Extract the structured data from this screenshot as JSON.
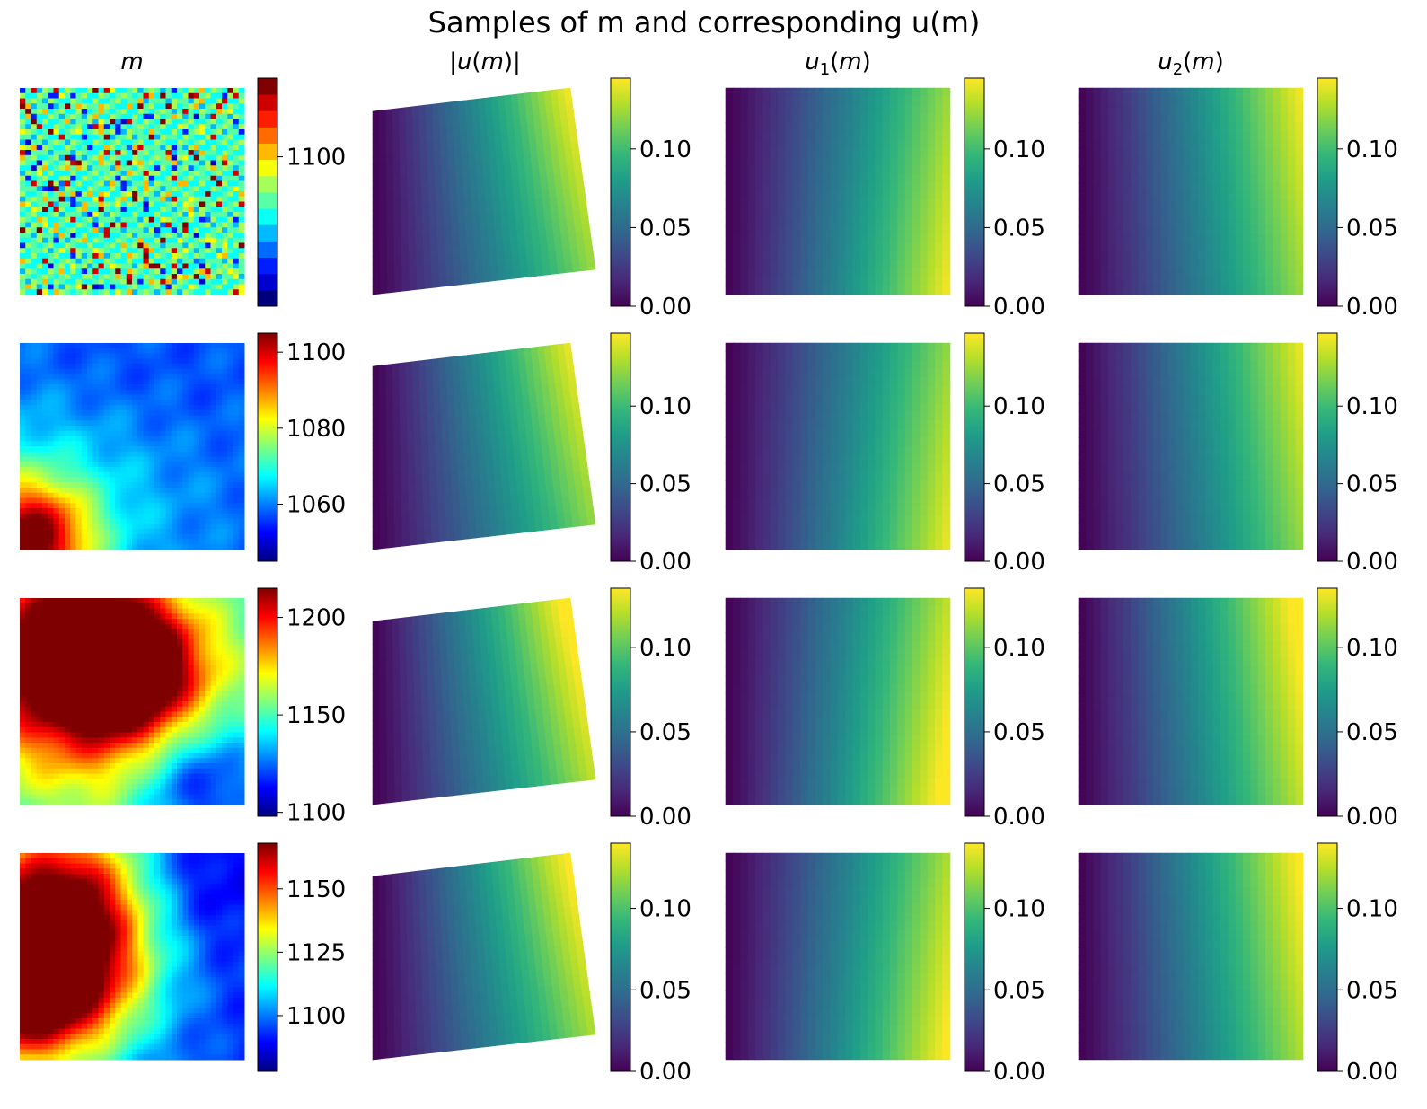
{
  "chart_data": {
    "type": "heatmap",
    "title": "Samples of m and corresponding u(m)",
    "columns": [
      {
        "key": "m",
        "title": "m",
        "colormap": "jet"
      },
      {
        "key": "abs_u",
        "title": "|u(m)|",
        "colormap": "viridis"
      },
      {
        "key": "u1",
        "title": "u1(m)",
        "title_main": "u",
        "title_sub": "1",
        "title_tail": "(m)",
        "colormap": "viridis"
      },
      {
        "key": "u2",
        "title": "u2(m)",
        "title_main": "u",
        "title_sub": "2",
        "title_tail": "(m)",
        "colormap": "viridis"
      }
    ],
    "rows": [
      {
        "m": {
          "field": "noise",
          "vmin": 1043,
          "vmax": 1130,
          "ticks": [
            1100
          ],
          "levels": 14
        },
        "u_colorbar": {
          "vmin": 0.0,
          "vmax": 0.145,
          "ticks": [
            "0.00",
            "0.05",
            "0.10"
          ]
        }
      },
      {
        "m": {
          "field": "smooth",
          "vmin": 1045,
          "vmax": 1105,
          "ticks": [
            1060,
            1080,
            1100
          ],
          "blobs": [
            [
              0.05,
              0.95,
              0.85,
              0.18
            ],
            [
              0.0,
              0.85,
              0.45,
              0.35
            ],
            [
              0.3,
              0.1,
              0.2,
              0.2
            ],
            [
              0.75,
              0.2,
              0.2,
              0.25
            ],
            [
              0.6,
              0.75,
              0.25,
              0.3
            ]
          ],
          "base": 0.22
        },
        "u_colorbar": {
          "vmin": 0.0,
          "vmax": 0.147,
          "ticks": [
            "0.00",
            "0.05",
            "0.10"
          ]
        }
      },
      {
        "m": {
          "field": "smooth",
          "vmin": 1098,
          "vmax": 1215,
          "ticks": [
            1100,
            1150,
            1200
          ],
          "blobs": [
            [
              0.5,
              0.35,
              0.95,
              0.22
            ],
            [
              0.15,
              0.3,
              0.85,
              0.3
            ],
            [
              0.3,
              0.2,
              0.8,
              0.25
            ],
            [
              0.35,
              0.65,
              0.6,
              0.35
            ],
            [
              0.8,
              0.9,
              0.1,
              0.2
            ],
            [
              0.9,
              0.2,
              0.45,
              0.25
            ]
          ],
          "base": 0.4
        },
        "u_colorbar": {
          "vmin": 0.0,
          "vmax": 0.135,
          "ticks": [
            "0.00",
            "0.05",
            "0.10"
          ]
        }
      },
      {
        "m": {
          "field": "smooth",
          "vmin": 1078,
          "vmax": 1168,
          "ticks": [
            1100,
            1125,
            1150
          ],
          "blobs": [
            [
              0.0,
              0.6,
              1.0,
              0.28
            ],
            [
              0.15,
              0.45,
              0.85,
              0.35
            ],
            [
              0.25,
              0.1,
              0.5,
              0.25
            ],
            [
              0.75,
              0.15,
              0.05,
              0.25
            ],
            [
              0.85,
              0.7,
              0.15,
              0.3
            ]
          ],
          "base": 0.2
        },
        "u_colorbar": {
          "vmin": 0.0,
          "vmax": 0.14,
          "ticks": [
            "0.00",
            "0.05",
            "0.10"
          ]
        }
      }
    ],
    "u_field_max": 0.145,
    "grid": false,
    "legend": "none"
  },
  "colors": {
    "jet": [
      "#00007f",
      "#0000ff",
      "#007fff",
      "#00ffff",
      "#7fff7f",
      "#ffff00",
      "#ff7f00",
      "#ff0000",
      "#7f0000"
    ],
    "viridis": [
      "#440154",
      "#482878",
      "#3e4989",
      "#31688e",
      "#26828e",
      "#1f9e89",
      "#35b779",
      "#6ece58",
      "#b5de2b",
      "#fde725"
    ]
  }
}
